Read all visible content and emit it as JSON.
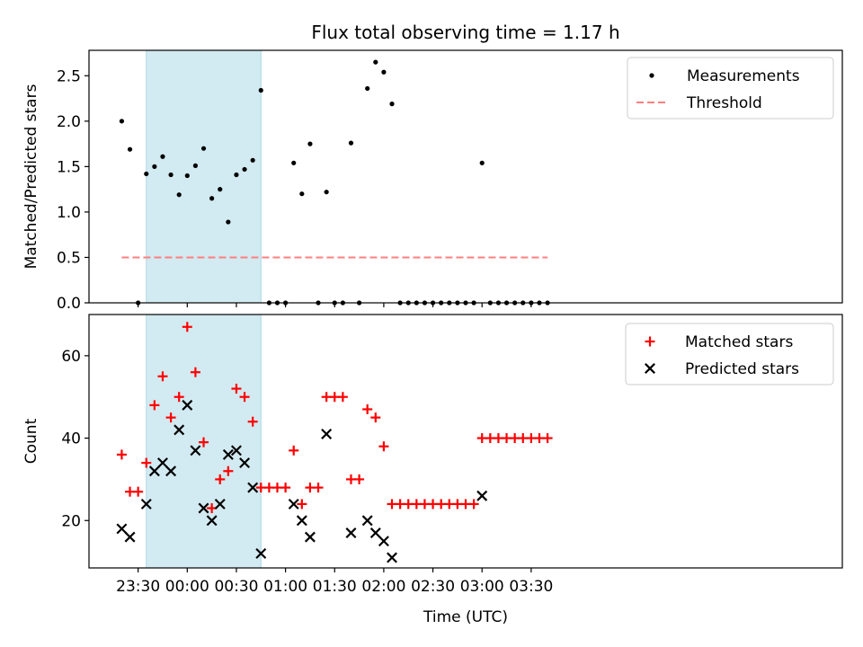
{
  "chart_data": {
    "type": "scatter",
    "title": "Flux total observing time = 1.17 h",
    "xlabel": "Time (UTC)",
    "x_unit": "minutes relative to 00:00 UTC",
    "xlim": [
      -60,
      400
    ],
    "x_tick_values": [
      -30,
      0,
      30,
      60,
      90,
      120,
      150,
      180,
      210
    ],
    "x_tick_labels": [
      "23:30",
      "00:00",
      "00:30",
      "01:00",
      "01:30",
      "02:00",
      "02:30",
      "03:00",
      "03:30"
    ],
    "highlight_span": {
      "x": [
        -25,
        45
      ],
      "color": "#add8e6"
    },
    "top_panel": {
      "ylabel": "Matched/Predicted stars",
      "ylim": [
        0,
        2.78
      ],
      "y_tick_values": [
        0.0,
        0.5,
        1.0,
        1.5,
        2.0,
        2.5
      ],
      "y_tick_labels": [
        "0.0",
        "0.5",
        "1.0",
        "1.5",
        "2.0",
        "2.5"
      ],
      "series": [
        {
          "name": "Measurements",
          "color": "#000000",
          "marker": "dot",
          "points": [
            [
              -40,
              2.0
            ],
            [
              -35,
              1.69
            ],
            [
              -30,
              0.0
            ],
            [
              -25,
              1.42
            ],
            [
              -20,
              1.5
            ],
            [
              -15,
              1.61
            ],
            [
              -10,
              1.41
            ],
            [
              -5,
              1.19
            ],
            [
              0,
              1.4
            ],
            [
              5,
              1.51
            ],
            [
              10,
              1.7
            ],
            [
              15,
              1.15
            ],
            [
              20,
              1.25
            ],
            [
              25,
              0.89
            ],
            [
              30,
              1.41
            ],
            [
              35,
              1.47
            ],
            [
              40,
              1.57
            ],
            [
              45,
              2.34
            ],
            [
              50,
              0.0
            ],
            [
              55,
              0.0
            ],
            [
              60,
              0.0
            ],
            [
              65,
              1.54
            ],
            [
              70,
              1.2
            ],
            [
              75,
              1.75
            ],
            [
              80,
              0.0
            ],
            [
              85,
              1.22
            ],
            [
              90,
              0.0
            ],
            [
              95,
              0.0
            ],
            [
              100,
              1.76
            ],
            [
              105,
              0.0
            ],
            [
              110,
              2.36
            ],
            [
              115,
              2.65
            ],
            [
              120,
              2.54
            ],
            [
              125,
              2.19
            ],
            [
              130,
              0.0
            ],
            [
              135,
              0.0
            ],
            [
              140,
              0.0
            ],
            [
              145,
              0.0
            ],
            [
              150,
              0.0
            ],
            [
              155,
              0.0
            ],
            [
              160,
              0.0
            ],
            [
              165,
              0.0
            ],
            [
              170,
              0.0
            ],
            [
              175,
              0.0
            ],
            [
              180,
              1.54
            ],
            [
              185,
              0.0
            ],
            [
              190,
              0.0
            ],
            [
              195,
              0.0
            ],
            [
              200,
              0.0
            ],
            [
              205,
              0.0
            ],
            [
              210,
              0.0
            ],
            [
              215,
              0.0
            ],
            [
              220,
              0.0
            ]
          ]
        },
        {
          "name": "Threshold",
          "color": "#ff7f7f",
          "line": "dashed",
          "x": [
            -40,
            220
          ],
          "y": [
            0.5,
            0.5
          ]
        }
      ],
      "legend_position": "top-right"
    },
    "bottom_panel": {
      "ylabel": "Count",
      "ylim": [
        8.5,
        70
      ],
      "y_tick_values": [
        20,
        40,
        60
      ],
      "y_tick_labels": [
        "20",
        "40",
        "60"
      ],
      "series": [
        {
          "name": "Matched stars",
          "color": "#ff0000",
          "marker": "plus",
          "points": [
            [
              -40,
              36
            ],
            [
              -35,
              27
            ],
            [
              -30,
              27
            ],
            [
              -25,
              34
            ],
            [
              -20,
              48
            ],
            [
              -15,
              55
            ],
            [
              -10,
              45
            ],
            [
              -5,
              50
            ],
            [
              0,
              67
            ],
            [
              5,
              56
            ],
            [
              10,
              39
            ],
            [
              15,
              23
            ],
            [
              20,
              30
            ],
            [
              25,
              32
            ],
            [
              30,
              52
            ],
            [
              35,
              50
            ],
            [
              40,
              44
            ],
            [
              45,
              28
            ],
            [
              50,
              28
            ],
            [
              55,
              28
            ],
            [
              60,
              28
            ],
            [
              65,
              37
            ],
            [
              70,
              24
            ],
            [
              75,
              28
            ],
            [
              80,
              28
            ],
            [
              85,
              50
            ],
            [
              90,
              50
            ],
            [
              95,
              50
            ],
            [
              100,
              30
            ],
            [
              105,
              30
            ],
            [
              110,
              47
            ],
            [
              115,
              45
            ],
            [
              120,
              38
            ],
            [
              125,
              24
            ],
            [
              130,
              24
            ],
            [
              135,
              24
            ],
            [
              140,
              24
            ],
            [
              145,
              24
            ],
            [
              150,
              24
            ],
            [
              155,
              24
            ],
            [
              160,
              24
            ],
            [
              165,
              24
            ],
            [
              170,
              24
            ],
            [
              175,
              24
            ],
            [
              180,
              40
            ],
            [
              185,
              40
            ],
            [
              190,
              40
            ],
            [
              195,
              40
            ],
            [
              200,
              40
            ],
            [
              205,
              40
            ],
            [
              210,
              40
            ],
            [
              215,
              40
            ],
            [
              220,
              40
            ]
          ]
        },
        {
          "name": "Predicted stars",
          "color": "#000000",
          "marker": "x",
          "points": [
            [
              -40,
              18
            ],
            [
              -35,
              16
            ],
            [
              -25,
              24
            ],
            [
              -20,
              32
            ],
            [
              -15,
              34
            ],
            [
              -10,
              32
            ],
            [
              -5,
              42
            ],
            [
              0,
              48
            ],
            [
              5,
              37
            ],
            [
              10,
              23
            ],
            [
              15,
              20
            ],
            [
              20,
              24
            ],
            [
              25,
              36
            ],
            [
              30,
              37
            ],
            [
              35,
              34
            ],
            [
              40,
              28
            ],
            [
              45,
              12
            ],
            [
              65,
              24
            ],
            [
              70,
              20
            ],
            [
              75,
              16
            ],
            [
              85,
              41
            ],
            [
              100,
              17
            ],
            [
              110,
              20
            ],
            [
              115,
              17
            ],
            [
              120,
              15
            ],
            [
              125,
              11
            ],
            [
              180,
              26
            ]
          ]
        }
      ],
      "legend_position": "top-right"
    }
  }
}
